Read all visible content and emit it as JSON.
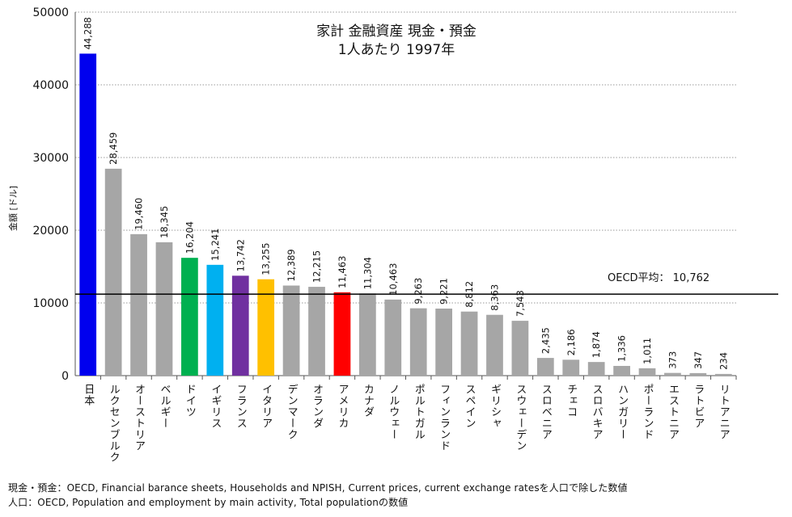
{
  "chart_data": {
    "type": "bar",
    "title_lines": [
      "家計 金融資産 現金・預金",
      "1人あたり 1997年"
    ],
    "ylabel": "金額 [ドル]",
    "xlabel": "",
    "ylim": [
      0,
      50000
    ],
    "yticks": [
      0,
      10000,
      20000,
      30000,
      40000,
      50000
    ],
    "grid": true,
    "categories": [
      "日本",
      "ルクセンブルク",
      "オーストリア",
      "ベルギー",
      "ドイツ",
      "イギリス",
      "フランス",
      "イタリア",
      "デンマーク",
      "オランダ",
      "アメリカ",
      "カナダ",
      "ノルウェー",
      "ポルトガル",
      "フィンランド",
      "スペイン",
      "ギリシャ",
      "スウェーデン",
      "スロベニア",
      "チェコ",
      "スロバキア",
      "ハンガリー",
      "ポーランド",
      "エストニア",
      "ラトビア",
      "リトアニア"
    ],
    "values": [
      44288,
      28459,
      19460,
      18345,
      16204,
      15241,
      13742,
      13255,
      12389,
      12215,
      11463,
      11304,
      10463,
      9263,
      9221,
      8812,
      8363,
      7543,
      2435,
      2186,
      1874,
      1336,
      1011,
      373,
      347,
      234
    ],
    "value_labels": [
      "44,288",
      "28,459",
      "19,460",
      "18,345",
      "16,204",
      "15,241",
      "13,742",
      "13,255",
      "12,389",
      "12,215",
      "11,463",
      "11,304",
      "10,463",
      "9,263",
      "9,221",
      "8,812",
      "8,363",
      "7,543",
      "2,435",
      "2,186",
      "1,874",
      "1,336",
      "1,011",
      "373",
      "347",
      "234"
    ],
    "colors": [
      "#0000ee",
      "#a6a6a6",
      "#a6a6a6",
      "#a6a6a6",
      "#00b050",
      "#00b0f0",
      "#7030a0",
      "#ffc000",
      "#a6a6a6",
      "#a6a6a6",
      "#ff0000",
      "#a6a6a6",
      "#a6a6a6",
      "#a6a6a6",
      "#a6a6a6",
      "#a6a6a6",
      "#a6a6a6",
      "#a6a6a6",
      "#a6a6a6",
      "#a6a6a6",
      "#a6a6a6",
      "#a6a6a6",
      "#a6a6a6",
      "#a6a6a6",
      "#a6a6a6",
      "#a6a6a6"
    ],
    "reference_line": {
      "label": "OECD平均： 10,762",
      "value": 10762,
      "color": "#000000"
    }
  },
  "notes": [
    "現金・預金：OECD, Financial barance sheets, Households and NPISH, Current prices, current exchange ratesを人口で除した数値",
    "人口：OECD, Population and employment by main activity, Total populationの数値"
  ]
}
